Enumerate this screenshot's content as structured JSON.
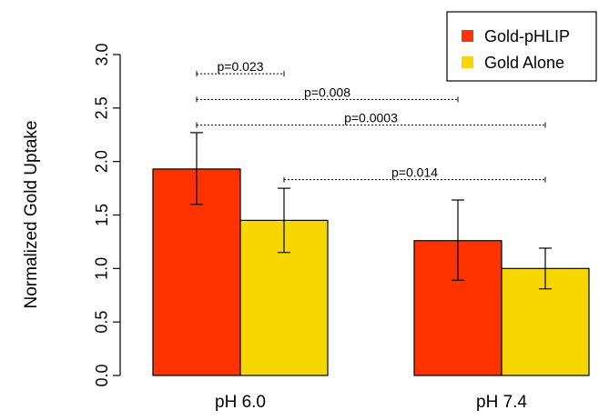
{
  "chart_data": {
    "type": "bar",
    "title": "",
    "xlabel": "",
    "ylabel": "Normalized Gold Uptake",
    "ylim": [
      0,
      3.0
    ],
    "yticks": [
      "0.0",
      "0.5",
      "1.0",
      "1.5",
      "2.0",
      "2.5",
      "3.0"
    ],
    "categories": [
      "pH 6.0",
      "pH 7.4"
    ],
    "series": [
      {
        "name": "Gold-pHLIP",
        "color": "#ff3300",
        "values": [
          1.93,
          1.26
        ],
        "error_low": [
          1.6,
          0.89
        ],
        "error_high": [
          2.27,
          1.64
        ]
      },
      {
        "name": "Gold Alone",
        "color": "#f8d700",
        "values": [
          1.45,
          1.0
        ],
        "error_low": [
          1.15,
          0.81
        ],
        "error_high": [
          1.75,
          1.19
        ]
      }
    ],
    "legend_position": "top-right",
    "grid": false,
    "annotations": [
      {
        "text": "p=0.023",
        "from": [
          0,
          0
        ],
        "to": [
          0,
          1
        ],
        "level": 2.82
      },
      {
        "text": "p=0.008",
        "from": [
          0,
          0
        ],
        "to": [
          1,
          0
        ],
        "level": 2.58
      },
      {
        "text": "p=0.0003",
        "from": [
          0,
          0
        ],
        "to": [
          1,
          1
        ],
        "level": 2.34
      },
      {
        "text": "p=0.014",
        "from": [
          0,
          1
        ],
        "to": [
          1,
          1
        ],
        "level": 1.83
      }
    ]
  }
}
